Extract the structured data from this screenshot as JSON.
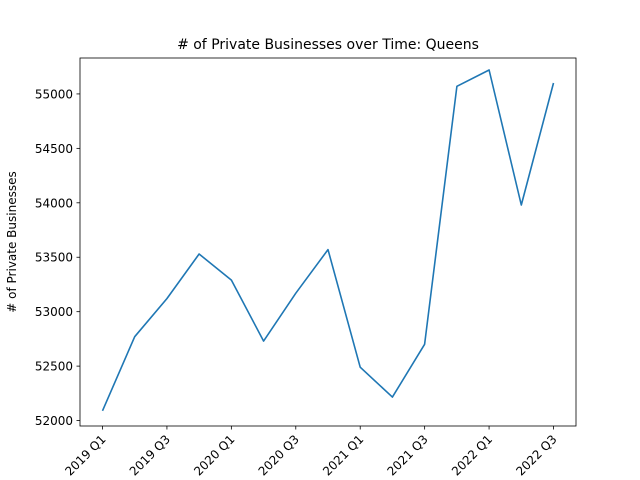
{
  "chart_data": {
    "type": "line",
    "title": "# of Private Businesses over Time: Queens",
    "xlabel": "",
    "ylabel": "# of Private Businesses",
    "x_tick_labels": [
      "2019 Q1",
      "2019 Q3",
      "2020 Q1",
      "2020 Q3",
      "2021 Q1",
      "2021 Q3",
      "2022 Q1",
      "2022 Q3"
    ],
    "y_ticks": [
      52000,
      52500,
      53000,
      53500,
      54000,
      54500,
      55000
    ],
    "ylim": [
      51950,
      55330
    ],
    "grid": false,
    "legend": "none",
    "series": [
      {
        "color": "#1f77b4",
        "x": [
          "2019 Q1",
          "2019 Q2",
          "2019 Q3",
          "2019 Q4",
          "2020 Q1",
          "2020 Q2",
          "2020 Q3",
          "2020 Q4",
          "2021 Q1",
          "2021 Q2",
          "2021 Q3",
          "2021 Q4",
          "2022 Q1",
          "2022 Q2",
          "2022 Q3"
        ],
        "values": [
          52090,
          52770,
          53120,
          53530,
          53290,
          52730,
          53170,
          53570,
          52490,
          52215,
          52700,
          55070,
          55220,
          53980,
          55100
        ]
      }
    ]
  }
}
